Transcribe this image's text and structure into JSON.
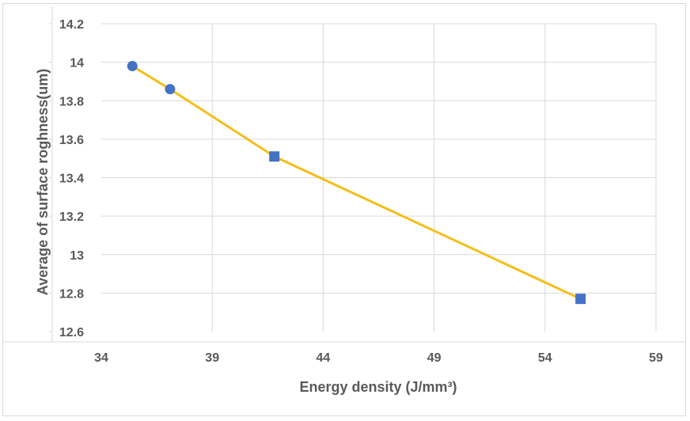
{
  "chart_data": {
    "type": "scatter",
    "title": "",
    "xlabel": "Energy density (J/mm³)",
    "ylabel": "Average of surface roghness(um)",
    "xlim": [
      34,
      59
    ],
    "ylim": [
      12.6,
      14.2
    ],
    "xticks": [
      34,
      39,
      44,
      49,
      54,
      59
    ],
    "yticks": [
      12.6,
      12.8,
      13,
      13.2,
      13.4,
      13.6,
      13.8,
      14,
      14.2
    ],
    "grid": true,
    "legend": "none",
    "line_color": "#f5be19",
    "marker_color": "#4472c4",
    "axis_line_color": "#d9d9d9",
    "series": [
      {
        "marker": "circle",
        "x": [
          35.4,
          37.1
        ],
        "y": [
          13.98,
          13.86
        ]
      },
      {
        "marker": "square",
        "x": [
          41.8,
          55.6
        ],
        "y": [
          13.51,
          12.77
        ]
      }
    ]
  }
}
